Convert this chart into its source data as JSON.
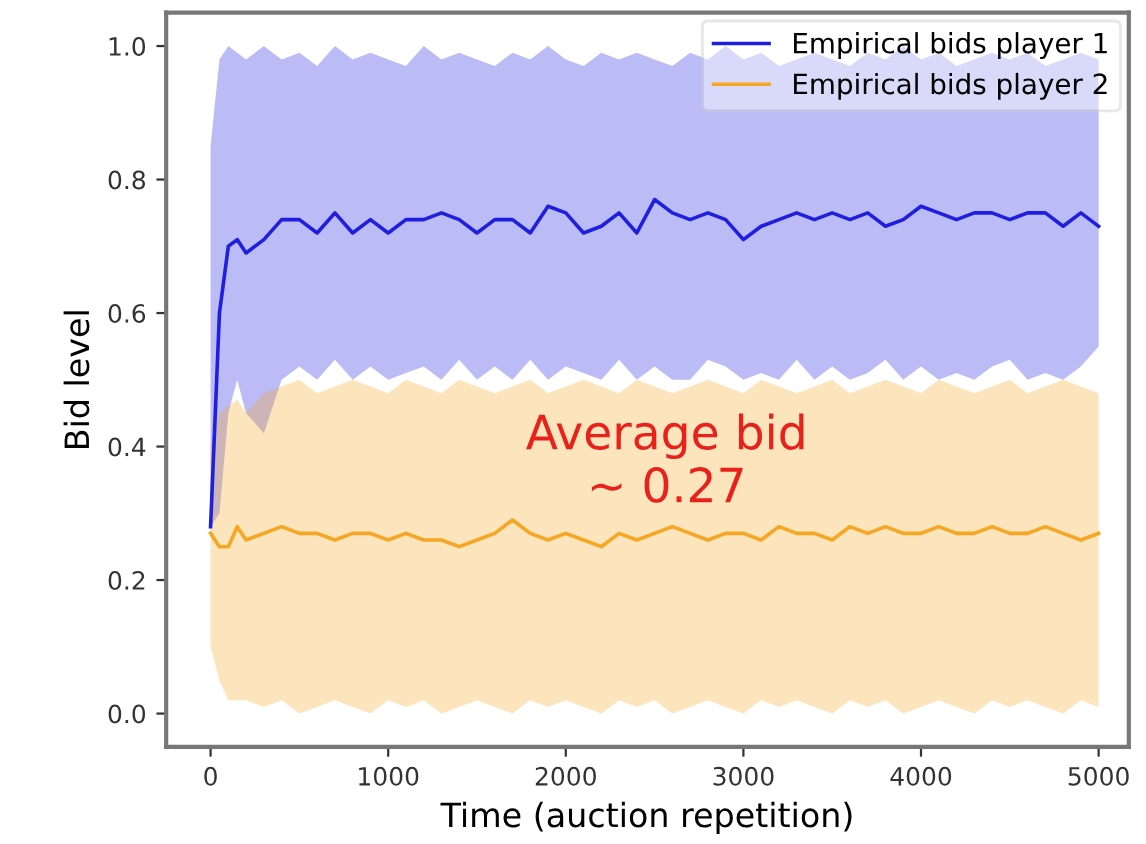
{
  "chart_data": {
    "type": "line",
    "xlabel": "Time (auction repetition)",
    "ylabel": "Bid level",
    "x": [
      0,
      50,
      100,
      150,
      200,
      300,
      400,
      500,
      600,
      700,
      800,
      900,
      1000,
      1100,
      1200,
      1300,
      1400,
      1500,
      1600,
      1700,
      1800,
      1900,
      2000,
      2100,
      2200,
      2300,
      2400,
      2500,
      2600,
      2700,
      2800,
      2900,
      3000,
      3100,
      3200,
      3300,
      3400,
      3500,
      3600,
      3700,
      3800,
      3900,
      4000,
      4100,
      4200,
      4300,
      4400,
      4500,
      4600,
      4700,
      4800,
      4900,
      5000
    ],
    "series": [
      {
        "name": "Empirical bids player 1",
        "color": "#1f1fe0",
        "values": [
          0.28,
          0.6,
          0.7,
          0.71,
          0.69,
          0.71,
          0.74,
          0.74,
          0.72,
          0.75,
          0.72,
          0.74,
          0.72,
          0.74,
          0.74,
          0.75,
          0.74,
          0.72,
          0.74,
          0.74,
          0.72,
          0.76,
          0.75,
          0.72,
          0.73,
          0.75,
          0.72,
          0.77,
          0.75,
          0.74,
          0.75,
          0.74,
          0.71,
          0.73,
          0.74,
          0.75,
          0.74,
          0.75,
          0.74,
          0.75,
          0.73,
          0.74,
          0.76,
          0.75,
          0.74,
          0.75,
          0.75,
          0.74,
          0.75,
          0.75,
          0.73,
          0.75,
          0.73
        ],
        "lower": [
          0.28,
          0.3,
          0.45,
          0.5,
          0.45,
          0.42,
          0.5,
          0.52,
          0.5,
          0.53,
          0.5,
          0.52,
          0.5,
          0.51,
          0.52,
          0.5,
          0.53,
          0.5,
          0.52,
          0.5,
          0.53,
          0.5,
          0.52,
          0.51,
          0.5,
          0.53,
          0.5,
          0.52,
          0.5,
          0.5,
          0.53,
          0.52,
          0.5,
          0.51,
          0.5,
          0.53,
          0.5,
          0.52,
          0.5,
          0.51,
          0.53,
          0.5,
          0.52,
          0.5,
          0.51,
          0.5,
          0.52,
          0.53,
          0.5,
          0.51,
          0.5,
          0.52,
          0.55
        ],
        "upper": [
          0.85,
          0.98,
          1.0,
          0.99,
          0.98,
          1.0,
          0.98,
          0.99,
          0.97,
          1.0,
          0.98,
          0.99,
          0.98,
          0.97,
          1.0,
          0.98,
          0.99,
          0.98,
          0.97,
          0.99,
          0.98,
          1.0,
          0.98,
          0.97,
          0.99,
          0.98,
          0.99,
          0.98,
          0.97,
          0.99,
          0.98,
          1.0,
          0.98,
          0.99,
          0.97,
          0.98,
          0.99,
          0.98,
          0.97,
          0.99,
          0.98,
          1.0,
          0.98,
          0.99,
          0.97,
          0.98,
          0.99,
          0.98,
          0.99,
          0.97,
          0.98,
          0.99,
          0.98
        ]
      },
      {
        "name": "Empirical bids player 2",
        "color": "#f5a623",
        "values": [
          0.27,
          0.25,
          0.25,
          0.28,
          0.26,
          0.27,
          0.28,
          0.27,
          0.27,
          0.26,
          0.27,
          0.27,
          0.26,
          0.27,
          0.26,
          0.26,
          0.25,
          0.26,
          0.27,
          0.29,
          0.27,
          0.26,
          0.27,
          0.26,
          0.25,
          0.27,
          0.26,
          0.27,
          0.28,
          0.27,
          0.26,
          0.27,
          0.27,
          0.26,
          0.28,
          0.27,
          0.27,
          0.26,
          0.28,
          0.27,
          0.28,
          0.27,
          0.27,
          0.28,
          0.27,
          0.27,
          0.28,
          0.27,
          0.27,
          0.28,
          0.27,
          0.26,
          0.27
        ],
        "lower": [
          0.1,
          0.05,
          0.02,
          0.02,
          0.02,
          0.01,
          0.02,
          0.0,
          0.01,
          0.02,
          0.01,
          0.0,
          0.02,
          0.01,
          0.02,
          0.0,
          0.01,
          0.02,
          0.01,
          0.0,
          0.02,
          0.01,
          0.02,
          0.01,
          0.0,
          0.02,
          0.01,
          0.02,
          0.0,
          0.01,
          0.02,
          0.01,
          0.0,
          0.02,
          0.01,
          0.02,
          0.01,
          0.0,
          0.02,
          0.01,
          0.02,
          0.0,
          0.01,
          0.02,
          0.01,
          0.0,
          0.02,
          0.01,
          0.02,
          0.01,
          0.0,
          0.02,
          0.01
        ],
        "upper": [
          0.4,
          0.45,
          0.46,
          0.47,
          0.45,
          0.48,
          0.49,
          0.5,
          0.48,
          0.49,
          0.5,
          0.49,
          0.48,
          0.5,
          0.49,
          0.48,
          0.5,
          0.49,
          0.48,
          0.49,
          0.5,
          0.48,
          0.49,
          0.5,
          0.49,
          0.48,
          0.5,
          0.49,
          0.48,
          0.49,
          0.5,
          0.49,
          0.48,
          0.5,
          0.49,
          0.48,
          0.49,
          0.5,
          0.48,
          0.49,
          0.5,
          0.49,
          0.48,
          0.5,
          0.49,
          0.48,
          0.49,
          0.5,
          0.48,
          0.49,
          0.5,
          0.49,
          0.48
        ]
      }
    ],
    "xlim": [
      -250,
      5170
    ],
    "ylim": [
      -0.05,
      1.05
    ],
    "xticks": [
      0,
      1000,
      2000,
      3000,
      4000,
      5000
    ],
    "yticks": [
      {
        "value": 0,
        "label": "0.0"
      },
      {
        "value": 0.2,
        "label": "0.2"
      },
      {
        "value": 0.4,
        "label": "0.4"
      },
      {
        "value": 0.6,
        "label": "0.6"
      },
      {
        "value": 0.8,
        "label": "0.8"
      },
      {
        "value": 1.0,
        "label": "1.0"
      }
    ],
    "annotations": [
      "Average bid\n∼ 0.27"
    ],
    "legend": "top right",
    "grid": false,
    "marker": "none",
    "line_style": "solid"
  }
}
